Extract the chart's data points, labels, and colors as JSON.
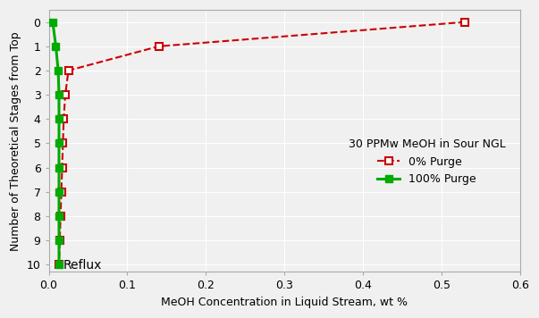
{
  "title": "",
  "xlabel": "MeOH Concentration in Liquid Stream, wt %",
  "ylabel": "Number of Theoretical Stages from Top",
  "xlim": [
    0,
    0.6
  ],
  "ylim": [
    10.3,
    -0.5
  ],
  "xticks": [
    0.0,
    0.1,
    0.2,
    0.3,
    0.4,
    0.5,
    0.6
  ],
  "yticks": [
    0,
    1,
    2,
    3,
    4,
    5,
    6,
    7,
    8,
    9,
    10
  ],
  "reflux_label": "Reflux",
  "legend_title": "30 PPMw MeOH in Sour NGL",
  "legend_entries": [
    "0% Purge",
    "100% Purge"
  ],
  "red_x": [
    0.53,
    0.14,
    0.025,
    0.021,
    0.019,
    0.018,
    0.017,
    0.016,
    0.015,
    0.014,
    0.013
  ],
  "red_y": [
    0,
    1,
    2,
    3,
    4,
    5,
    6,
    7,
    8,
    9,
    10
  ],
  "green_x": [
    0.005,
    0.009,
    0.012,
    0.013,
    0.013,
    0.013,
    0.013,
    0.013,
    0.013,
    0.013,
    0.013
  ],
  "green_y": [
    0,
    1,
    2,
    3,
    4,
    5,
    6,
    7,
    8,
    9,
    10
  ],
  "red_color": "#CC0000",
  "green_color": "#00AA00",
  "background_color": "#f0f0f0",
  "plot_bg_color": "#f0f0f0",
  "grid_color": "#ffffff",
  "spine_color": "#aaaaaa"
}
